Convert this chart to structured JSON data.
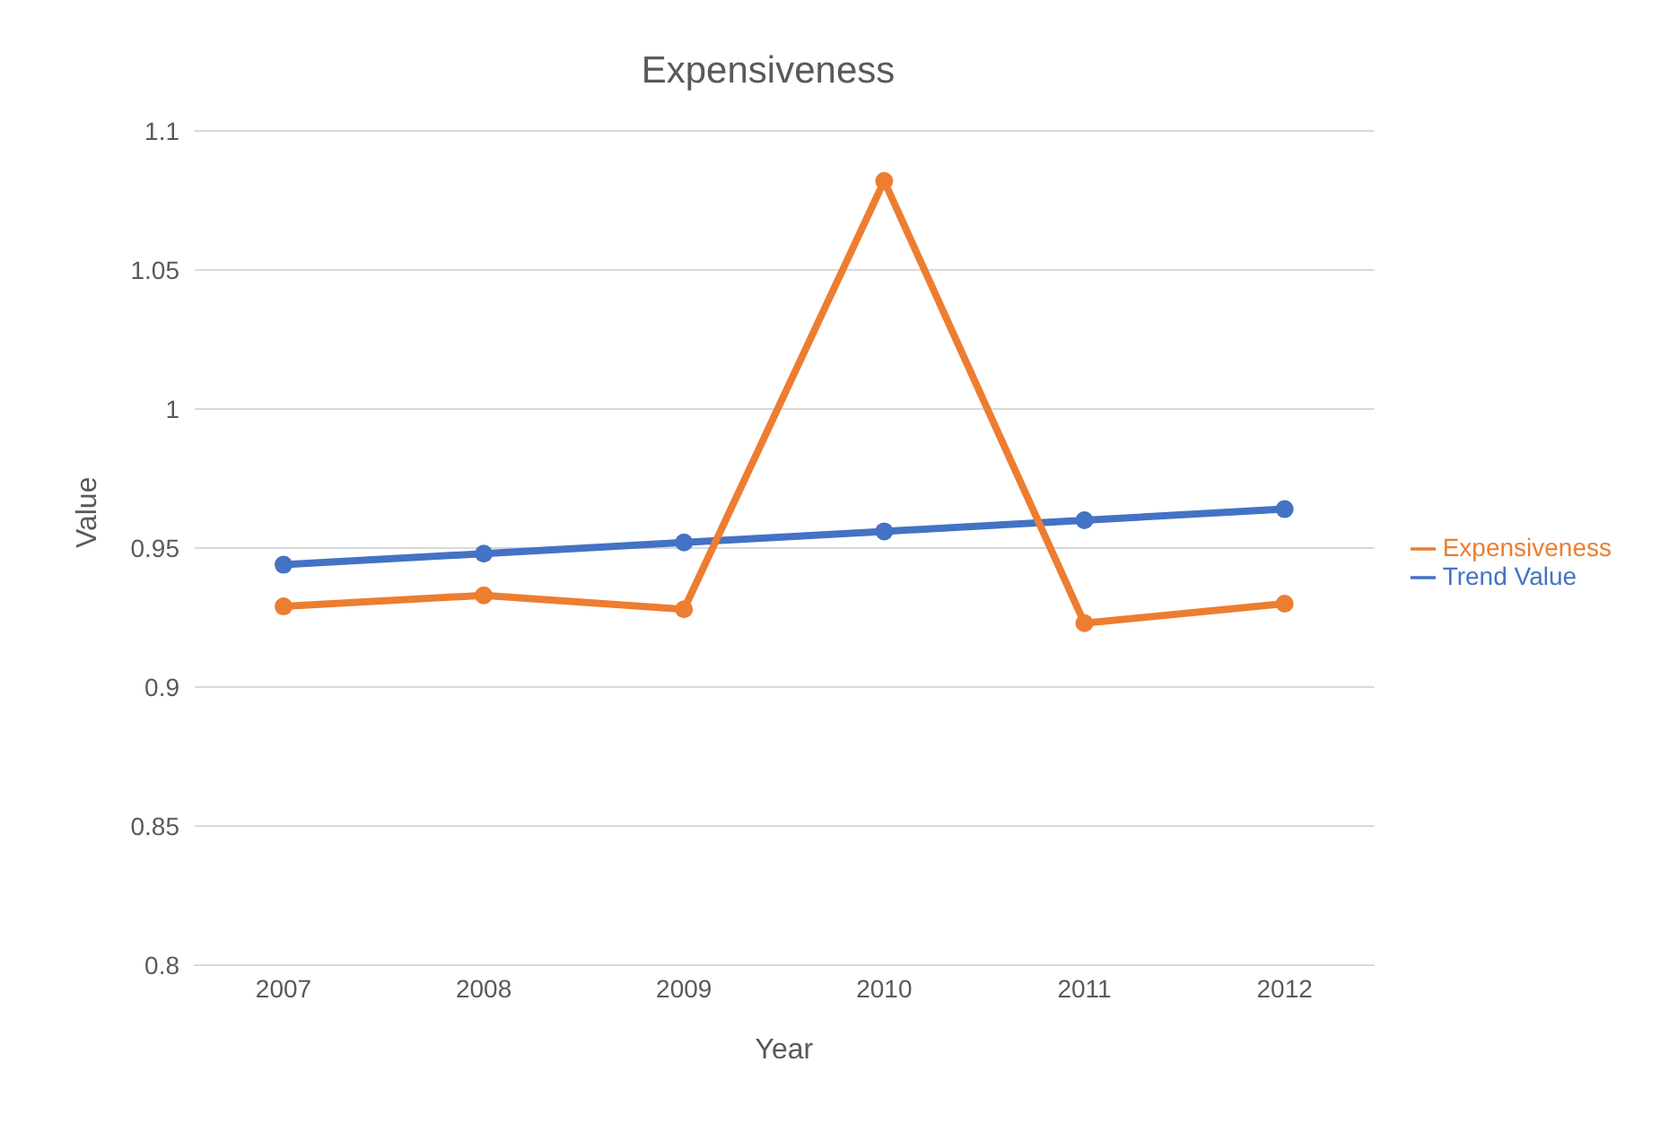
{
  "chart_data": {
    "type": "line",
    "title": "Expensiveness",
    "xlabel": "Year",
    "ylabel": "Value",
    "categories": [
      "2007",
      "2008",
      "2009",
      "2010",
      "2011",
      "2012"
    ],
    "series": [
      {
        "name": "Trend Value",
        "color": "#4472c4",
        "values": [
          0.944,
          0.948,
          0.952,
          0.956,
          0.96,
          0.964
        ]
      },
      {
        "name": "Expensiveness",
        "color": "#ed7d31",
        "values": [
          0.929,
          0.933,
          0.928,
          1.082,
          0.923,
          0.93
        ]
      }
    ],
    "ylim": [
      0.8,
      1.1
    ],
    "yticks": [
      0.8,
      0.85,
      0.9,
      0.95,
      1,
      1.05,
      1.1
    ],
    "grid": "y",
    "legend": "right",
    "marker": "circle",
    "line_style": "solid"
  }
}
